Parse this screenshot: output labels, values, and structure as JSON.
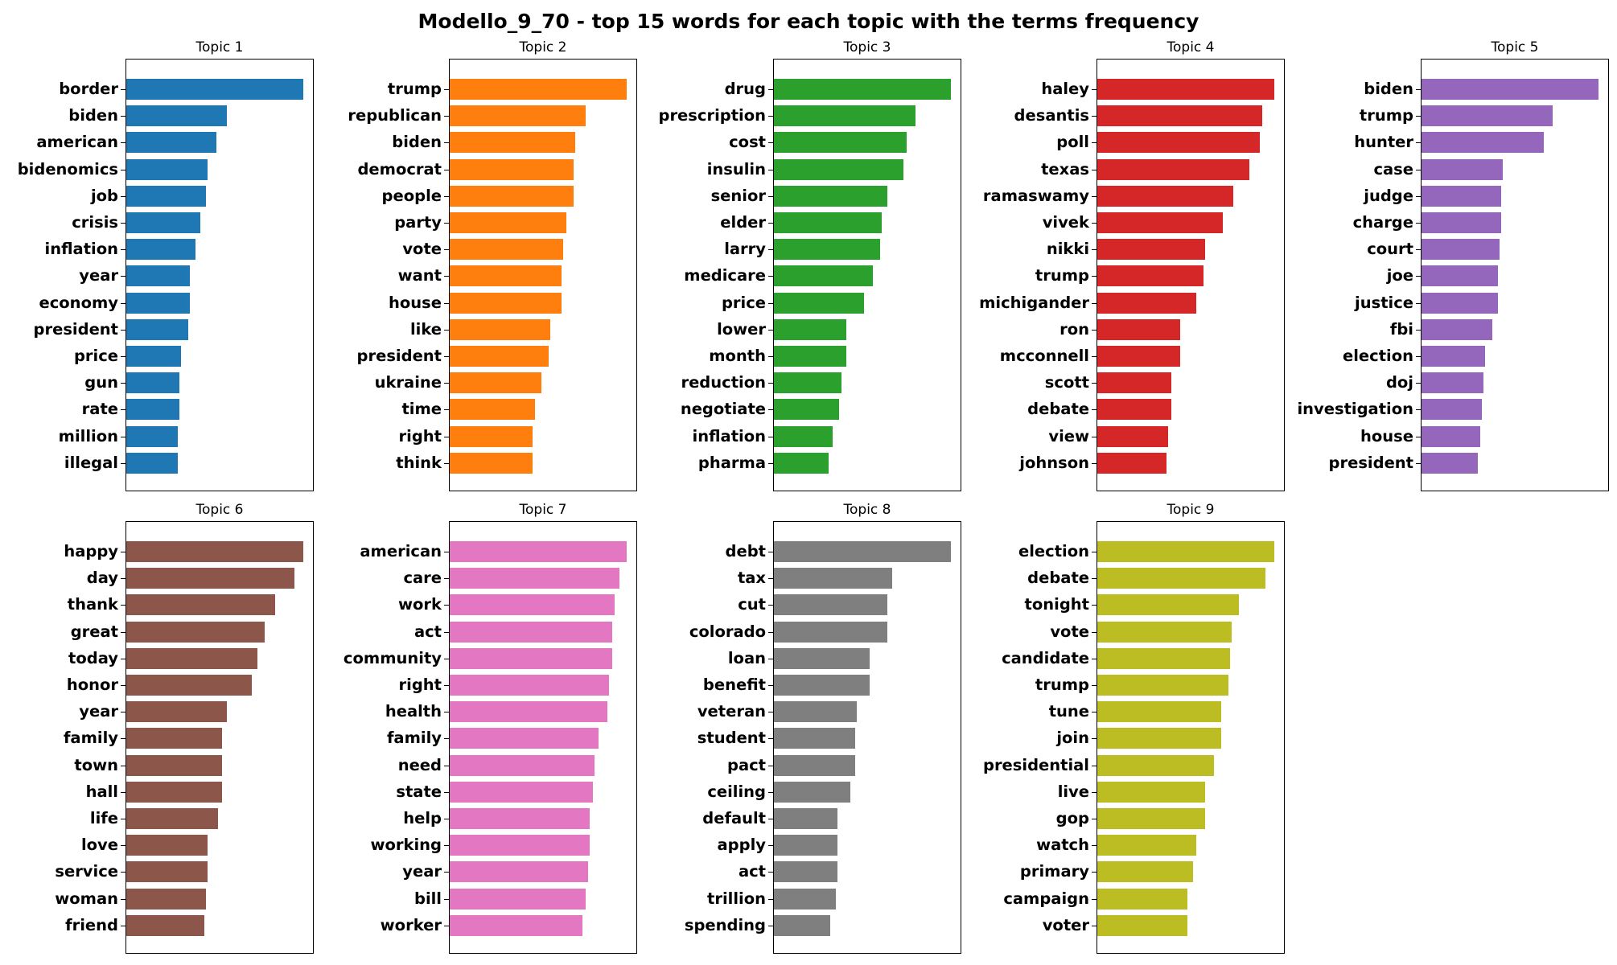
{
  "title": "Modello_9_70 - top 15 words for each topic with the terms frequency",
  "chart_data": [
    {
      "type": "bar",
      "orientation": "horizontal",
      "title": "Topic 1",
      "color": "#1f77b4",
      "categories": [
        "border",
        "biden",
        "american",
        "bidenomics",
        "job",
        "crisis",
        "inflation",
        "year",
        "economy",
        "president",
        "price",
        "gun",
        "rate",
        "million",
        "illegal"
      ],
      "values": [
        100,
        57,
        51,
        46,
        45,
        42,
        39,
        36,
        36,
        35,
        31,
        30,
        30,
        29,
        29
      ]
    },
    {
      "type": "bar",
      "orientation": "horizontal",
      "title": "Topic 2",
      "color": "#ff7f0e",
      "categories": [
        "trump",
        "republican",
        "biden",
        "democrat",
        "people",
        "party",
        "vote",
        "want",
        "house",
        "like",
        "president",
        "ukraine",
        "time",
        "right",
        "think"
      ],
      "values": [
        100,
        77,
        71,
        70,
        70,
        66,
        64,
        63,
        63,
        57,
        56,
        52,
        48,
        47,
        47
      ]
    },
    {
      "type": "bar",
      "orientation": "horizontal",
      "title": "Topic 3",
      "color": "#2ca02c",
      "categories": [
        "drug",
        "prescription",
        "cost",
        "insulin",
        "senior",
        "elder",
        "larry",
        "medicare",
        "price",
        "lower",
        "month",
        "reduction",
        "negotiate",
        "inflation",
        "pharma"
      ],
      "values": [
        100,
        80,
        75,
        73,
        64,
        61,
        60,
        56,
        51,
        41,
        41,
        38,
        37,
        33,
        31
      ]
    },
    {
      "type": "bar",
      "orientation": "horizontal",
      "title": "Topic 4",
      "color": "#d62728",
      "categories": [
        "haley",
        "desantis",
        "poll",
        "texas",
        "ramaswamy",
        "vivek",
        "nikki",
        "trump",
        "michigander",
        "ron",
        "mcconnell",
        "scott",
        "debate",
        "view",
        "johnson"
      ],
      "values": [
        100,
        93,
        92,
        86,
        77,
        71,
        61,
        60,
        56,
        47,
        47,
        42,
        42,
        40,
        39
      ]
    },
    {
      "type": "bar",
      "orientation": "horizontal",
      "title": "Topic 5",
      "color": "#9467bd",
      "categories": [
        "biden",
        "trump",
        "hunter",
        "case",
        "judge",
        "charge",
        "court",
        "joe",
        "justice",
        "fbi",
        "election",
        "doj",
        "investigation",
        "house",
        "president"
      ],
      "values": [
        100,
        74,
        69,
        46,
        45,
        45,
        44,
        43,
        43,
        40,
        36,
        35,
        34,
        33,
        32
      ]
    },
    {
      "type": "bar",
      "orientation": "horizontal",
      "title": "Topic 6",
      "color": "#8c564b",
      "categories": [
        "happy",
        "day",
        "thank",
        "great",
        "today",
        "honor",
        "year",
        "family",
        "town",
        "hall",
        "life",
        "love",
        "service",
        "woman",
        "friend"
      ],
      "values": [
        100,
        95,
        84,
        78,
        74,
        71,
        57,
        54,
        54,
        54,
        52,
        46,
        46,
        45,
        44
      ]
    },
    {
      "type": "bar",
      "orientation": "horizontal",
      "title": "Topic 7",
      "color": "#e377c2",
      "categories": [
        "american",
        "care",
        "work",
        "act",
        "community",
        "right",
        "health",
        "family",
        "need",
        "state",
        "help",
        "working",
        "year",
        "bill",
        "worker"
      ],
      "values": [
        100,
        96,
        93,
        92,
        92,
        90,
        89,
        84,
        82,
        81,
        79,
        79,
        78,
        77,
        75
      ]
    },
    {
      "type": "bar",
      "orientation": "horizontal",
      "title": "Topic 8",
      "color": "#7f7f7f",
      "categories": [
        "debt",
        "tax",
        "cut",
        "colorado",
        "loan",
        "benefit",
        "veteran",
        "student",
        "pact",
        "ceiling",
        "default",
        "apply",
        "act",
        "trillion",
        "spending"
      ],
      "values": [
        100,
        67,
        64,
        64,
        54,
        54,
        47,
        46,
        46,
        43,
        36,
        36,
        36,
        35,
        32
      ]
    },
    {
      "type": "bar",
      "orientation": "horizontal",
      "title": "Topic 9",
      "color": "#bcbd22",
      "categories": [
        "election",
        "debate",
        "tonight",
        "vote",
        "candidate",
        "trump",
        "tune",
        "join",
        "presidential",
        "live",
        "gop",
        "watch",
        "primary",
        "campaign",
        "voter"
      ],
      "values": [
        100,
        95,
        80,
        76,
        75,
        74,
        70,
        70,
        66,
        61,
        61,
        56,
        54,
        51,
        51
      ]
    }
  ]
}
